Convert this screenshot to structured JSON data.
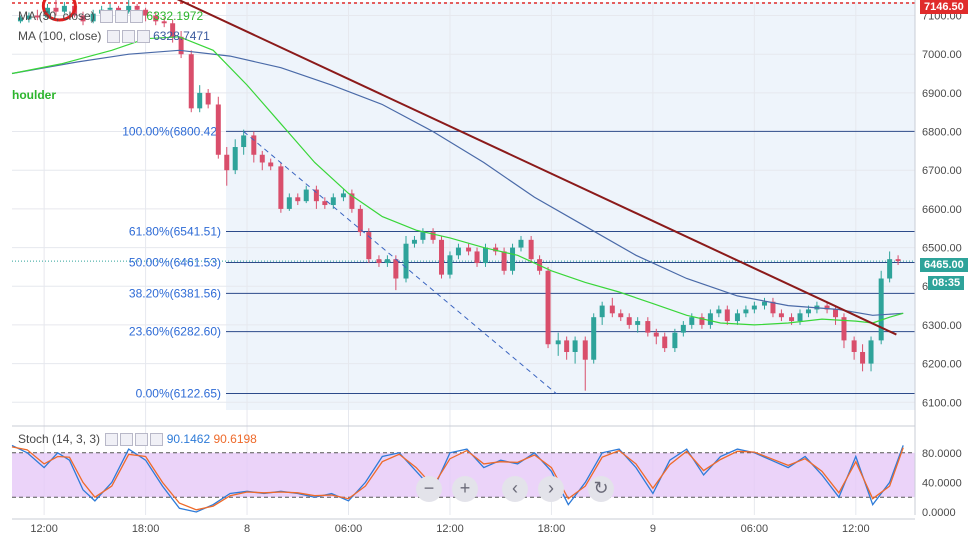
{
  "chart_data": {
    "type": "candlestick",
    "y_axis": {
      "ticks": [
        "7100.00",
        "7000.00",
        "6900.00",
        "6800.00",
        "6700.00",
        "6600.00",
        "6500.00",
        "6400.00",
        "6300.00",
        "6200.00",
        "6100.00"
      ],
      "tick_values": [
        7100,
        7000,
        6900,
        6800,
        6700,
        6600,
        6500,
        6400,
        6300,
        6200,
        6100
      ],
      "range": [
        6080,
        7135
      ],
      "top_cut_label": "7146.50"
    },
    "x_axis": {
      "labels": [
        "12:00",
        "18:00",
        "8",
        "06:00",
        "12:00",
        "18:00",
        "9",
        "06:00",
        "12:00"
      ],
      "hours_from_start": [
        0,
        6,
        12,
        18,
        24,
        30,
        36,
        42,
        48
      ],
      "range_hours": [
        -1.9,
        51.5
      ]
    },
    "legends": {
      "ma50_label": "MA (50, close)",
      "ma50_value": "6332.1972",
      "ma100_label": "MA (100, close)",
      "ma100_value": "6328.7471",
      "stoch_label": "Stoch (14, 3, 3)",
      "stoch_k": "90.1462",
      "stoch_d": "90.6198",
      "annotation": "houlder"
    },
    "fib_levels": [
      {
        "label": "100.00%(6800.42)",
        "price": 6800.42
      },
      {
        "label": "61.80%(6541.51)",
        "price": 6541.51
      },
      {
        "label": "50.00%(6461.53)",
        "price": 6461.53
      },
      {
        "label": "38.20%(6381.56)",
        "price": 6381.56
      },
      {
        "label": "23.60%(6282.60)",
        "price": 6282.6
      },
      {
        "label": "0.00%(6122.65)",
        "price": 6122.65
      }
    ],
    "last_price_badge": "6465.00",
    "countdown_badge": "08:35",
    "trendline": {
      "from": [
        7.5,
        7150
      ],
      "to": [
        50.4,
        6275
      ]
    },
    "fib_diagonal": {
      "from": [
        11.8,
        6800
      ],
      "to": [
        30.3,
        6122
      ]
    },
    "candles": [
      [
        -1.4,
        7085,
        7095,
        7080,
        7100
      ],
      [
        -0.9,
        7090,
        7100,
        7082,
        7108
      ],
      [
        -0.4,
        7100,
        7095,
        7088,
        7115
      ],
      [
        0.2,
        7095,
        7120,
        7090,
        7130
      ],
      [
        0.7,
        7120,
        7110,
        7100,
        7140
      ],
      [
        1.2,
        7110,
        7125,
        7105,
        7135
      ],
      [
        1.8,
        7125,
        7100,
        7095,
        7130
      ],
      [
        2.3,
        7100,
        7085,
        7075,
        7110
      ],
      [
        2.9,
        7085,
        7105,
        7080,
        7115
      ],
      [
        3.4,
        7105,
        7115,
        7100,
        7125
      ],
      [
        3.9,
        7115,
        7120,
        7110,
        7130
      ],
      [
        4.4,
        7120,
        7110,
        7100,
        7125
      ],
      [
        5.0,
        7110,
        7125,
        7105,
        7140
      ],
      [
        5.5,
        7125,
        7115,
        7100,
        7130
      ],
      [
        6.0,
        7115,
        7100,
        7085,
        7120
      ],
      [
        6.6,
        7100,
        7085,
        7075,
        7110
      ],
      [
        7.1,
        7085,
        7080,
        7070,
        7095
      ],
      [
        7.6,
        7080,
        7045,
        7030,
        7090
      ],
      [
        8.1,
        7045,
        7000,
        6990,
        7060
      ],
      [
        8.7,
        7000,
        6860,
        6850,
        7010
      ],
      [
        9.2,
        6860,
        6900,
        6850,
        6920
      ],
      [
        9.7,
        6900,
        6870,
        6860,
        6910
      ],
      [
        10.3,
        6870,
        6740,
        6730,
        6890
      ],
      [
        10.8,
        6740,
        6700,
        6660,
        6760
      ],
      [
        11.3,
        6700,
        6760,
        6690,
        6780
      ],
      [
        11.8,
        6760,
        6790,
        6740,
        6805
      ],
      [
        12.4,
        6790,
        6740,
        6720,
        6800
      ],
      [
        12.9,
        6740,
        6720,
        6700,
        6750
      ],
      [
        13.4,
        6720,
        6710,
        6700,
        6730
      ],
      [
        14.0,
        6710,
        6600,
        6590,
        6720
      ],
      [
        14.5,
        6600,
        6630,
        6595,
        6640
      ],
      [
        15.0,
        6630,
        6620,
        6610,
        6640
      ],
      [
        15.5,
        6620,
        6650,
        6615,
        6660
      ],
      [
        16.1,
        6650,
        6620,
        6600,
        6660
      ],
      [
        16.6,
        6620,
        6610,
        6600,
        6630
      ],
      [
        17.1,
        6610,
        6630,
        6600,
        6640
      ],
      [
        17.7,
        6630,
        6640,
        6620,
        6650
      ],
      [
        18.2,
        6640,
        6600,
        6590,
        6650
      ],
      [
        18.7,
        6600,
        6540,
        6530,
        6610
      ],
      [
        19.2,
        6540,
        6470,
        6460,
        6550
      ],
      [
        19.8,
        6470,
        6460,
        6450,
        6480
      ],
      [
        20.3,
        6460,
        6470,
        6450,
        6480
      ],
      [
        20.8,
        6470,
        6420,
        6390,
        6480
      ],
      [
        21.4,
        6420,
        6510,
        6410,
        6530
      ],
      [
        21.9,
        6510,
        6520,
        6500,
        6530
      ],
      [
        22.4,
        6520,
        6540,
        6510,
        6550
      ],
      [
        23.0,
        6540,
        6520,
        6510,
        6550
      ],
      [
        23.5,
        6520,
        6430,
        6420,
        6530
      ],
      [
        24.0,
        6430,
        6480,
        6420,
        6490
      ],
      [
        24.5,
        6480,
        6500,
        6470,
        6510
      ],
      [
        25.1,
        6500,
        6490,
        6480,
        6510
      ],
      [
        25.6,
        6490,
        6460,
        6450,
        6500
      ],
      [
        26.1,
        6460,
        6500,
        6450,
        6510
      ],
      [
        26.7,
        6500,
        6490,
        6480,
        6510
      ],
      [
        27.2,
        6490,
        6440,
        6430,
        6500
      ],
      [
        27.7,
        6440,
        6500,
        6430,
        6510
      ],
      [
        28.2,
        6500,
        6520,
        6490,
        6530
      ],
      [
        28.8,
        6520,
        6470,
        6460,
        6530
      ],
      [
        29.3,
        6470,
        6440,
        6430,
        6480
      ],
      [
        29.8,
        6440,
        6250,
        6240,
        6450
      ],
      [
        30.4,
        6250,
        6260,
        6220,
        6280
      ],
      [
        30.9,
        6260,
        6230,
        6210,
        6270
      ],
      [
        31.4,
        6230,
        6260,
        6200,
        6270
      ],
      [
        32.0,
        6260,
        6210,
        6130,
        6270
      ],
      [
        32.5,
        6210,
        6320,
        6200,
        6330
      ],
      [
        33.0,
        6320,
        6350,
        6300,
        6360
      ],
      [
        33.6,
        6350,
        6330,
        6320,
        6370
      ],
      [
        34.1,
        6330,
        6320,
        6310,
        6340
      ],
      [
        34.6,
        6320,
        6300,
        6290,
        6330
      ],
      [
        35.1,
        6300,
        6310,
        6280,
        6320
      ],
      [
        35.7,
        6310,
        6280,
        6270,
        6320
      ],
      [
        36.2,
        6280,
        6270,
        6250,
        6290
      ],
      [
        36.7,
        6270,
        6240,
        6230,
        6280
      ],
      [
        37.3,
        6240,
        6280,
        6230,
        6290
      ],
      [
        37.8,
        6280,
        6300,
        6270,
        6310
      ],
      [
        38.3,
        6300,
        6320,
        6290,
        6330
      ],
      [
        38.9,
        6320,
        6300,
        6290,
        6330
      ],
      [
        39.4,
        6300,
        6330,
        6290,
        6340
      ],
      [
        39.9,
        6330,
        6340,
        6320,
        6350
      ],
      [
        40.4,
        6340,
        6310,
        6300,
        6350
      ],
      [
        41.0,
        6310,
        6330,
        6300,
        6340
      ],
      [
        41.5,
        6330,
        6340,
        6320,
        6350
      ],
      [
        42.0,
        6340,
        6350,
        6330,
        6360
      ],
      [
        42.6,
        6350,
        6360,
        6340,
        6370
      ],
      [
        43.1,
        6360,
        6330,
        6320,
        6370
      ],
      [
        43.6,
        6330,
        6320,
        6310,
        6340
      ],
      [
        44.2,
        6320,
        6310,
        6300,
        6330
      ],
      [
        44.7,
        6310,
        6330,
        6300,
        6340
      ],
      [
        45.2,
        6330,
        6340,
        6320,
        6350
      ],
      [
        45.7,
        6340,
        6350,
        6330,
        6360
      ],
      [
        46.3,
        6350,
        6340,
        6330,
        6360
      ],
      [
        46.8,
        6340,
        6320,
        6300,
        6350
      ],
      [
        47.3,
        6320,
        6260,
        6240,
        6330
      ],
      [
        47.9,
        6260,
        6230,
        6210,
        6270
      ],
      [
        48.4,
        6230,
        6200,
        6180,
        6250
      ],
      [
        48.9,
        6200,
        6260,
        6180,
        6270
      ],
      [
        49.5,
        6260,
        6420,
        6250,
        6440
      ],
      [
        50.0,
        6420,
        6470,
        6410,
        6490
      ],
      [
        50.5,
        6470,
        6465,
        6455,
        6480
      ]
    ],
    "ma50": [
      [
        -1.9,
        6950
      ],
      [
        1,
        6975
      ],
      [
        4,
        7010
      ],
      [
        6,
        7040
      ],
      [
        8,
        7045
      ],
      [
        10,
        7010
      ],
      [
        12,
        6920
      ],
      [
        14,
        6820
      ],
      [
        16,
        6720
      ],
      [
        18,
        6640
      ],
      [
        20,
        6580
      ],
      [
        22,
        6545
      ],
      [
        24,
        6525
      ],
      [
        26,
        6500
      ],
      [
        28,
        6480
      ],
      [
        30,
        6440
      ],
      [
        32,
        6410
      ],
      [
        34,
        6385
      ],
      [
        36,
        6355
      ],
      [
        38,
        6325
      ],
      [
        40,
        6305
      ],
      [
        42,
        6300
      ],
      [
        44,
        6305
      ],
      [
        46,
        6315
      ],
      [
        48,
        6310
      ],
      [
        49,
        6305
      ],
      [
        50,
        6320
      ],
      [
        50.8,
        6330
      ]
    ],
    "ma100": [
      [
        -1.9,
        6950
      ],
      [
        2,
        6980
      ],
      [
        5,
        7000
      ],
      [
        8,
        7010
      ],
      [
        11,
        6995
      ],
      [
        14,
        6965
      ],
      [
        17,
        6920
      ],
      [
        20,
        6870
      ],
      [
        23,
        6800
      ],
      [
        26,
        6720
      ],
      [
        29,
        6630
      ],
      [
        32,
        6555
      ],
      [
        35,
        6480
      ],
      [
        38,
        6420
      ],
      [
        41,
        6375
      ],
      [
        44,
        6350
      ],
      [
        47,
        6340
      ],
      [
        49,
        6325
      ],
      [
        50.8,
        6330
      ]
    ],
    "stoch": {
      "levels": [
        80,
        20
      ],
      "y_ticks": [
        "80.0000",
        "40.0000",
        "0.0000"
      ],
      "y_tick_values": [
        80,
        40,
        0
      ],
      "k": [
        [
          -1.9,
          90
        ],
        [
          -1,
          80
        ],
        [
          0,
          60
        ],
        [
          0.8,
          80
        ],
        [
          1.5,
          70
        ],
        [
          2.3,
          30
        ],
        [
          3,
          15
        ],
        [
          4,
          40
        ],
        [
          5,
          85
        ],
        [
          6,
          70
        ],
        [
          7,
          35
        ],
        [
          8,
          5
        ],
        [
          9,
          0
        ],
        [
          10,
          10
        ],
        [
          11,
          25
        ],
        [
          12,
          28
        ],
        [
          13,
          25
        ],
        [
          14,
          28
        ],
        [
          15,
          25
        ],
        [
          16,
          20
        ],
        [
          17,
          25
        ],
        [
          18,
          15
        ],
        [
          19,
          40
        ],
        [
          20,
          75
        ],
        [
          21,
          80
        ],
        [
          22,
          55
        ],
        [
          23,
          30
        ],
        [
          24,
          80
        ],
        [
          25,
          85
        ],
        [
          26,
          60
        ],
        [
          27,
          70
        ],
        [
          28,
          65
        ],
        [
          29,
          80
        ],
        [
          30,
          55
        ],
        [
          31,
          10
        ],
        [
          32,
          40
        ],
        [
          33,
          80
        ],
        [
          34,
          85
        ],
        [
          35,
          60
        ],
        [
          36,
          25
        ],
        [
          37,
          70
        ],
        [
          38,
          85
        ],
        [
          39,
          50
        ],
        [
          40,
          75
        ],
        [
          41,
          85
        ],
        [
          42,
          80
        ],
        [
          43,
          70
        ],
        [
          44,
          60
        ],
        [
          45,
          75
        ],
        [
          46,
          50
        ],
        [
          47,
          20
        ],
        [
          48,
          75
        ],
        [
          49,
          10
        ],
        [
          50,
          40
        ],
        [
          50.8,
          90
        ]
      ],
      "d": [
        [
          -1.9,
          88
        ],
        [
          -1,
          84
        ],
        [
          0,
          65
        ],
        [
          0.8,
          75
        ],
        [
          1.5,
          74
        ],
        [
          2.3,
          40
        ],
        [
          3,
          20
        ],
        [
          4,
          35
        ],
        [
          5,
          78
        ],
        [
          6,
          75
        ],
        [
          7,
          40
        ],
        [
          8,
          12
        ],
        [
          9,
          3
        ],
        [
          10,
          8
        ],
        [
          11,
          22
        ],
        [
          12,
          27
        ],
        [
          13,
          26
        ],
        [
          14,
          27
        ],
        [
          15,
          26
        ],
        [
          16,
          22
        ],
        [
          17,
          23
        ],
        [
          18,
          18
        ],
        [
          19,
          35
        ],
        [
          20,
          68
        ],
        [
          21,
          78
        ],
        [
          22,
          60
        ],
        [
          23,
          35
        ],
        [
          24,
          72
        ],
        [
          25,
          83
        ],
        [
          26,
          65
        ],
        [
          27,
          68
        ],
        [
          28,
          67
        ],
        [
          29,
          77
        ],
        [
          30,
          60
        ],
        [
          31,
          18
        ],
        [
          32,
          35
        ],
        [
          33,
          74
        ],
        [
          34,
          83
        ],
        [
          35,
          65
        ],
        [
          36,
          32
        ],
        [
          37,
          64
        ],
        [
          38,
          82
        ],
        [
          39,
          56
        ],
        [
          40,
          71
        ],
        [
          41,
          82
        ],
        [
          42,
          81
        ],
        [
          43,
          72
        ],
        [
          44,
          63
        ],
        [
          45,
          72
        ],
        [
          46,
          55
        ],
        [
          47,
          26
        ],
        [
          48,
          68
        ],
        [
          49,
          18
        ],
        [
          50,
          35
        ],
        [
          50.8,
          87
        ]
      ]
    }
  },
  "colors": {
    "up": "#2ea39a",
    "down": "#d94e6b",
    "ma50": "#39d639",
    "ma100": "#4a6aa8",
    "trendline": "#8b1a1a",
    "fib_line": "#2c4a8a",
    "fib_text": "#2e6bd6",
    "stoch_k": "#2e7bd8",
    "stoch_d": "#ee6a2a",
    "stoch_fill": "#e6c8f7",
    "last_price_bg": "#2ea39a",
    "axis_red": "#e02b2b",
    "highlight_bg": "#eef4fb"
  },
  "toolbar": {
    "zoom_out": "−",
    "zoom_in": "+",
    "scroll_left": "‹",
    "scroll_right": "›",
    "reset": "↻"
  }
}
